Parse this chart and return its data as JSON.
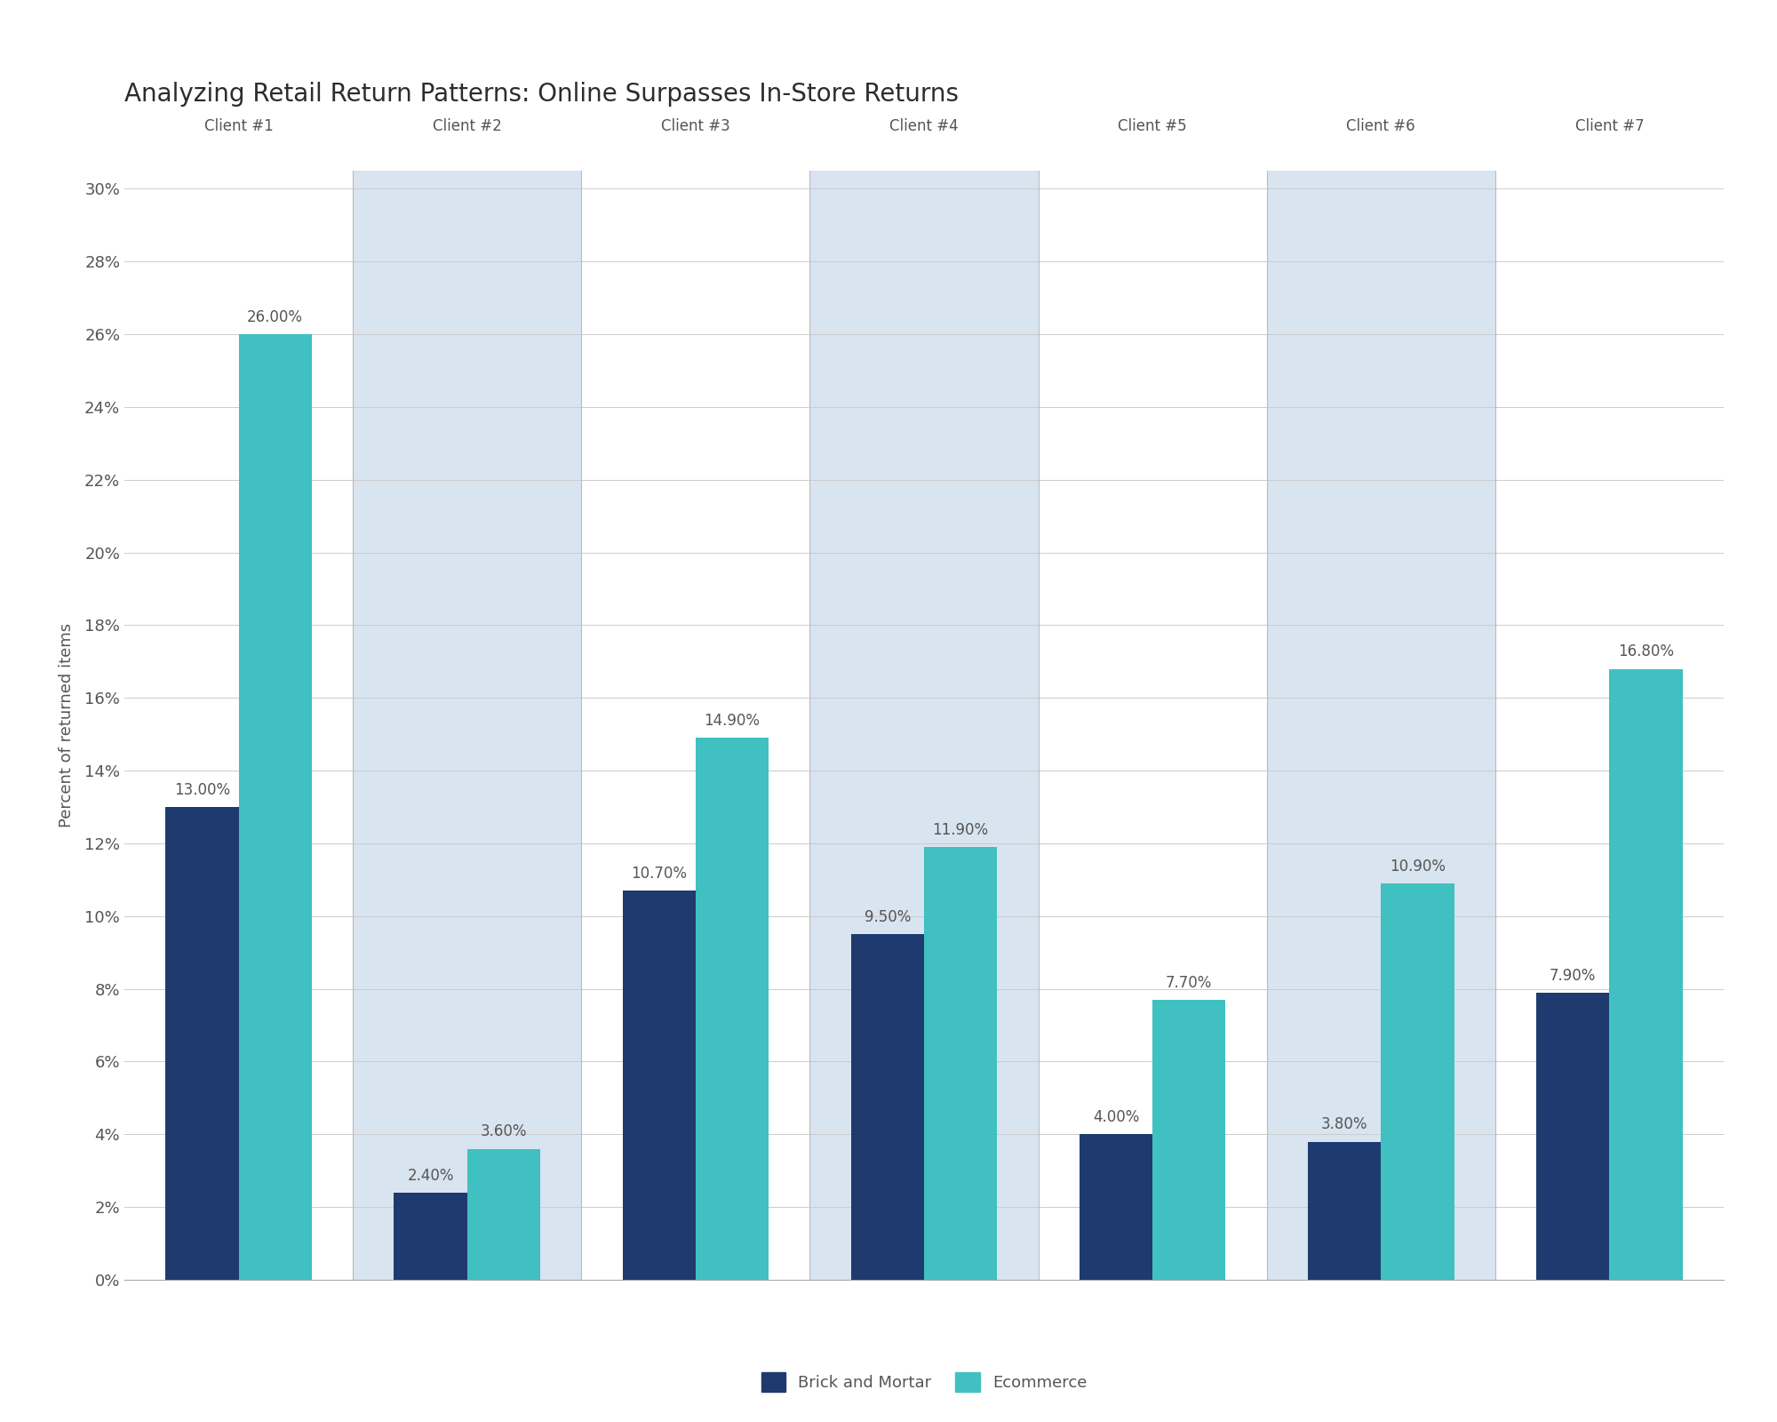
{
  "title": "Analyzing Retail Return Patterns: Online Surpasses In-Store Returns",
  "clients": [
    "Client #1",
    "Client #2",
    "Client #3",
    "Client #4",
    "Client #5",
    "Client #6",
    "Client #7"
  ],
  "brick_mortar": [
    13.0,
    2.4,
    10.7,
    9.5,
    4.0,
    3.8,
    7.9
  ],
  "ecommerce": [
    26.0,
    3.6,
    14.9,
    11.9,
    7.7,
    10.9,
    16.8
  ],
  "bar_color_bm": "#1e3a6e",
  "bar_color_ec": "#40c0c0",
  "bg_color_highlight": "#d8e4f0",
  "bg_color_plain": "#ffffff",
  "ylabel": "Percent of returned items",
  "ylim": [
    0,
    30
  ],
  "yticks": [
    0,
    2,
    4,
    6,
    8,
    10,
    12,
    14,
    16,
    18,
    20,
    22,
    24,
    26,
    28,
    30
  ],
  "legend_bm": "Brick and Mortar",
  "legend_ec": "Ecommerce",
  "title_fontsize": 20,
  "client_label_fontsize": 12,
  "ylabel_fontsize": 13,
  "tick_fontsize": 13,
  "annot_fontsize": 12,
  "bar_width": 0.32,
  "fig_bg": "#ffffff",
  "grid_color": "#cccccc",
  "text_color": "#555555",
  "title_color": "#2c2c2c"
}
